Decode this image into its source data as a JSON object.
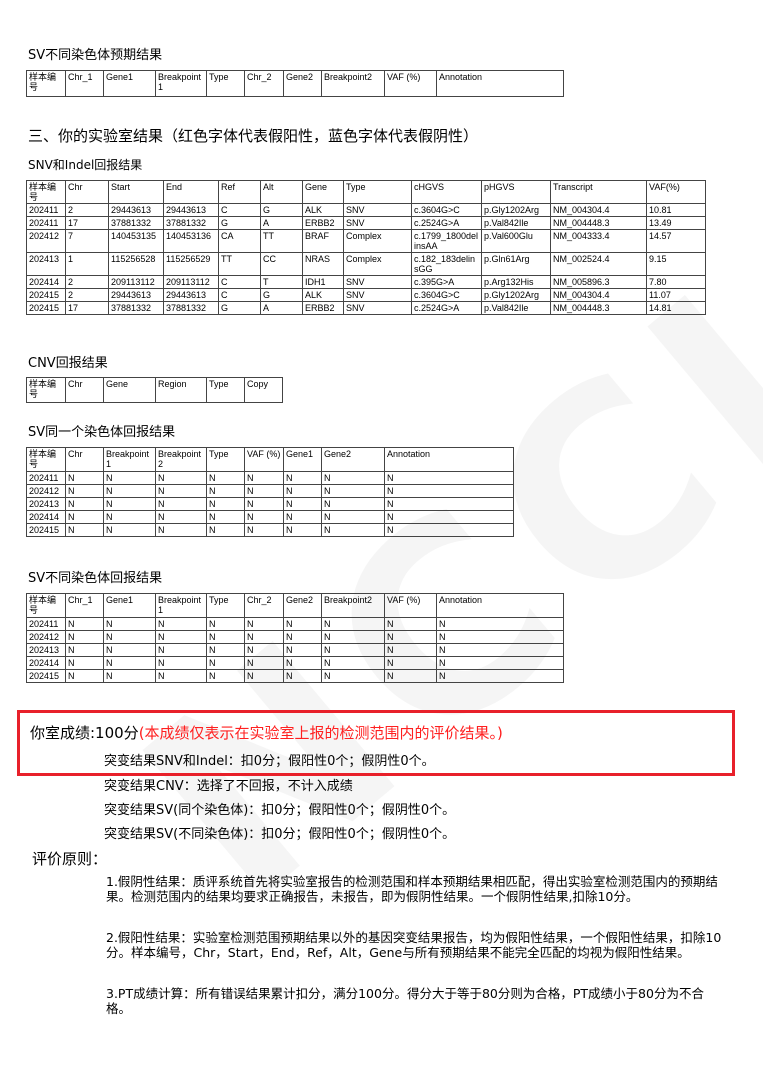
{
  "sv_diff_expected": {
    "title": "SV不同染色体预期结果",
    "headers": [
      "样本编号",
      "Chr_1",
      "Gene1",
      "Breakpoint1",
      "Type",
      "Chr_2",
      "Gene2",
      "Breakpoint2",
      "VAF (%)",
      "Annotation"
    ],
    "rows": []
  },
  "section3_title": "三、你的实验室结果（红色字体代表假阳性，蓝色字体代表假阴性）",
  "snv": {
    "title": "SNV和Indel回报结果",
    "headers": [
      "样本编号",
      "Chr",
      "Start",
      "End",
      "Ref",
      "Alt",
      "Gene",
      "Type",
      "cHGVS",
      "pHGVS",
      "Transcript",
      "VAF(%)"
    ],
    "rows": [
      [
        "202411",
        "2",
        "29443613",
        "29443613",
        "C",
        "G",
        "ALK",
        "SNV",
        "c.3604G>C",
        "p.Gly1202Arg",
        "NM_004304.4",
        "10.81"
      ],
      [
        "202411",
        "17",
        "37881332",
        "37881332",
        "G",
        "A",
        "ERBB2",
        "SNV",
        "c.2524G>A",
        "p.Val842Ile",
        "NM_004448.3",
        "13.49"
      ],
      [
        "202412",
        "7",
        "140453135",
        "140453136",
        "CA",
        "TT",
        "BRAF",
        "Complex",
        "c.1799_1800delinsAA",
        "p.Val600Glu",
        "NM_004333.4",
        "14.57"
      ],
      [
        "202413",
        "1",
        "115256528",
        "115256529",
        "TT",
        "CC",
        "NRAS",
        "Complex",
        "c.182_183delinsGG",
        "p.Gln61Arg",
        "NM_002524.4",
        "9.15"
      ],
      [
        "202414",
        "2",
        "209113112",
        "209113112",
        "C",
        "T",
        "IDH1",
        "SNV",
        "c.395G>A",
        "p.Arg132His",
        "NM_005896.3",
        "7.80"
      ],
      [
        "202415",
        "2",
        "29443613",
        "29443613",
        "C",
        "G",
        "ALK",
        "SNV",
        "c.3604G>C",
        "p.Gly1202Arg",
        "NM_004304.4",
        "11.07"
      ],
      [
        "202415",
        "17",
        "37881332",
        "37881332",
        "G",
        "A",
        "ERBB2",
        "SNV",
        "c.2524G>A",
        "p.Val842Ile",
        "NM_004448.3",
        "14.81"
      ]
    ]
  },
  "cnv": {
    "title": "CNV回报结果",
    "headers": [
      "样本编号",
      "Chr",
      "Gene",
      "Region",
      "Type",
      "Copy"
    ],
    "rows": []
  },
  "sv_same": {
    "title": "SV同一个染色体回报结果",
    "headers": [
      "样本编号",
      "Chr",
      "Breakpoint 1",
      "Breakpoint 2",
      "Type",
      "VAF (%)",
      "Gene1",
      "Gene2",
      "Annotation"
    ],
    "rows": [
      [
        "202411",
        "N",
        "N",
        "N",
        "N",
        "N",
        "N",
        "N",
        "N"
      ],
      [
        "202412",
        "N",
        "N",
        "N",
        "N",
        "N",
        "N",
        "N",
        "N"
      ],
      [
        "202413",
        "N",
        "N",
        "N",
        "N",
        "N",
        "N",
        "N",
        "N"
      ],
      [
        "202414",
        "N",
        "N",
        "N",
        "N",
        "N",
        "N",
        "N",
        "N"
      ],
      [
        "202415",
        "N",
        "N",
        "N",
        "N",
        "N",
        "N",
        "N",
        "N"
      ]
    ]
  },
  "sv_diff": {
    "title": "SV不同染色体回报结果",
    "headers": [
      "样本编号",
      "Chr_1",
      "Gene1",
      "Breakpoint1",
      "Type",
      "Chr_2",
      "Gene2",
      "Breakpoint2",
      "VAF (%)",
      "Annotation"
    ],
    "rows": [
      [
        "202411",
        "N",
        "N",
        "N",
        "N",
        "N",
        "N",
        "N",
        "N",
        "N"
      ],
      [
        "202412",
        "N",
        "N",
        "N",
        "N",
        "N",
        "N",
        "N",
        "N",
        "N"
      ],
      [
        "202413",
        "N",
        "N",
        "N",
        "N",
        "N",
        "N",
        "N",
        "N",
        "N"
      ],
      [
        "202414",
        "N",
        "N",
        "N",
        "N",
        "N",
        "N",
        "N",
        "N",
        "N"
      ],
      [
        "202415",
        "N",
        "N",
        "N",
        "N",
        "N",
        "N",
        "N",
        "N",
        "N"
      ]
    ]
  },
  "score": {
    "label": "你室成绩:100分",
    "note": "(本成绩仅表示在实验室上报的检测范围内的评价结果。)",
    "note_color": "#ff2020",
    "lines": [
      "突变结果SNV和Indel：扣0分；假阳性0个；假阴性0个。",
      "突变结果CNV：选择了不回报，不计入成绩",
      "突变结果SV(同个染色体)：扣0分；假阳性0个；假阴性0个。",
      "突变结果SV(不同染色体)：扣0分；假阳性0个；假阴性0个。"
    ]
  },
  "principles": {
    "title": "评价原则：",
    "items": [
      "1.假阴性结果：质评系统首先将实验室报告的检测范围和样本预期结果相匹配，得出实验室检测范围内的预期结果。检测范围内的结果均要求正确报告，未报告，即为假阴性结果。一个假阴性结果,扣除10分。",
      "2.假阳性结果：实验室检测范围预期结果以外的基因突变结果报告，均为假阳性结果，一个假阳性结果，扣除10分。样本编号，Chr，Start，End，Ref，Alt，Gene与所有预期结果不能完全匹配的均视为假阳性结果。",
      "3.PT成绩计算：所有错误结果累计扣分，满分100分。得分大于等于80分则为合格，PT成绩小于80分为不合格。"
    ]
  },
  "watermark": "NCCL"
}
